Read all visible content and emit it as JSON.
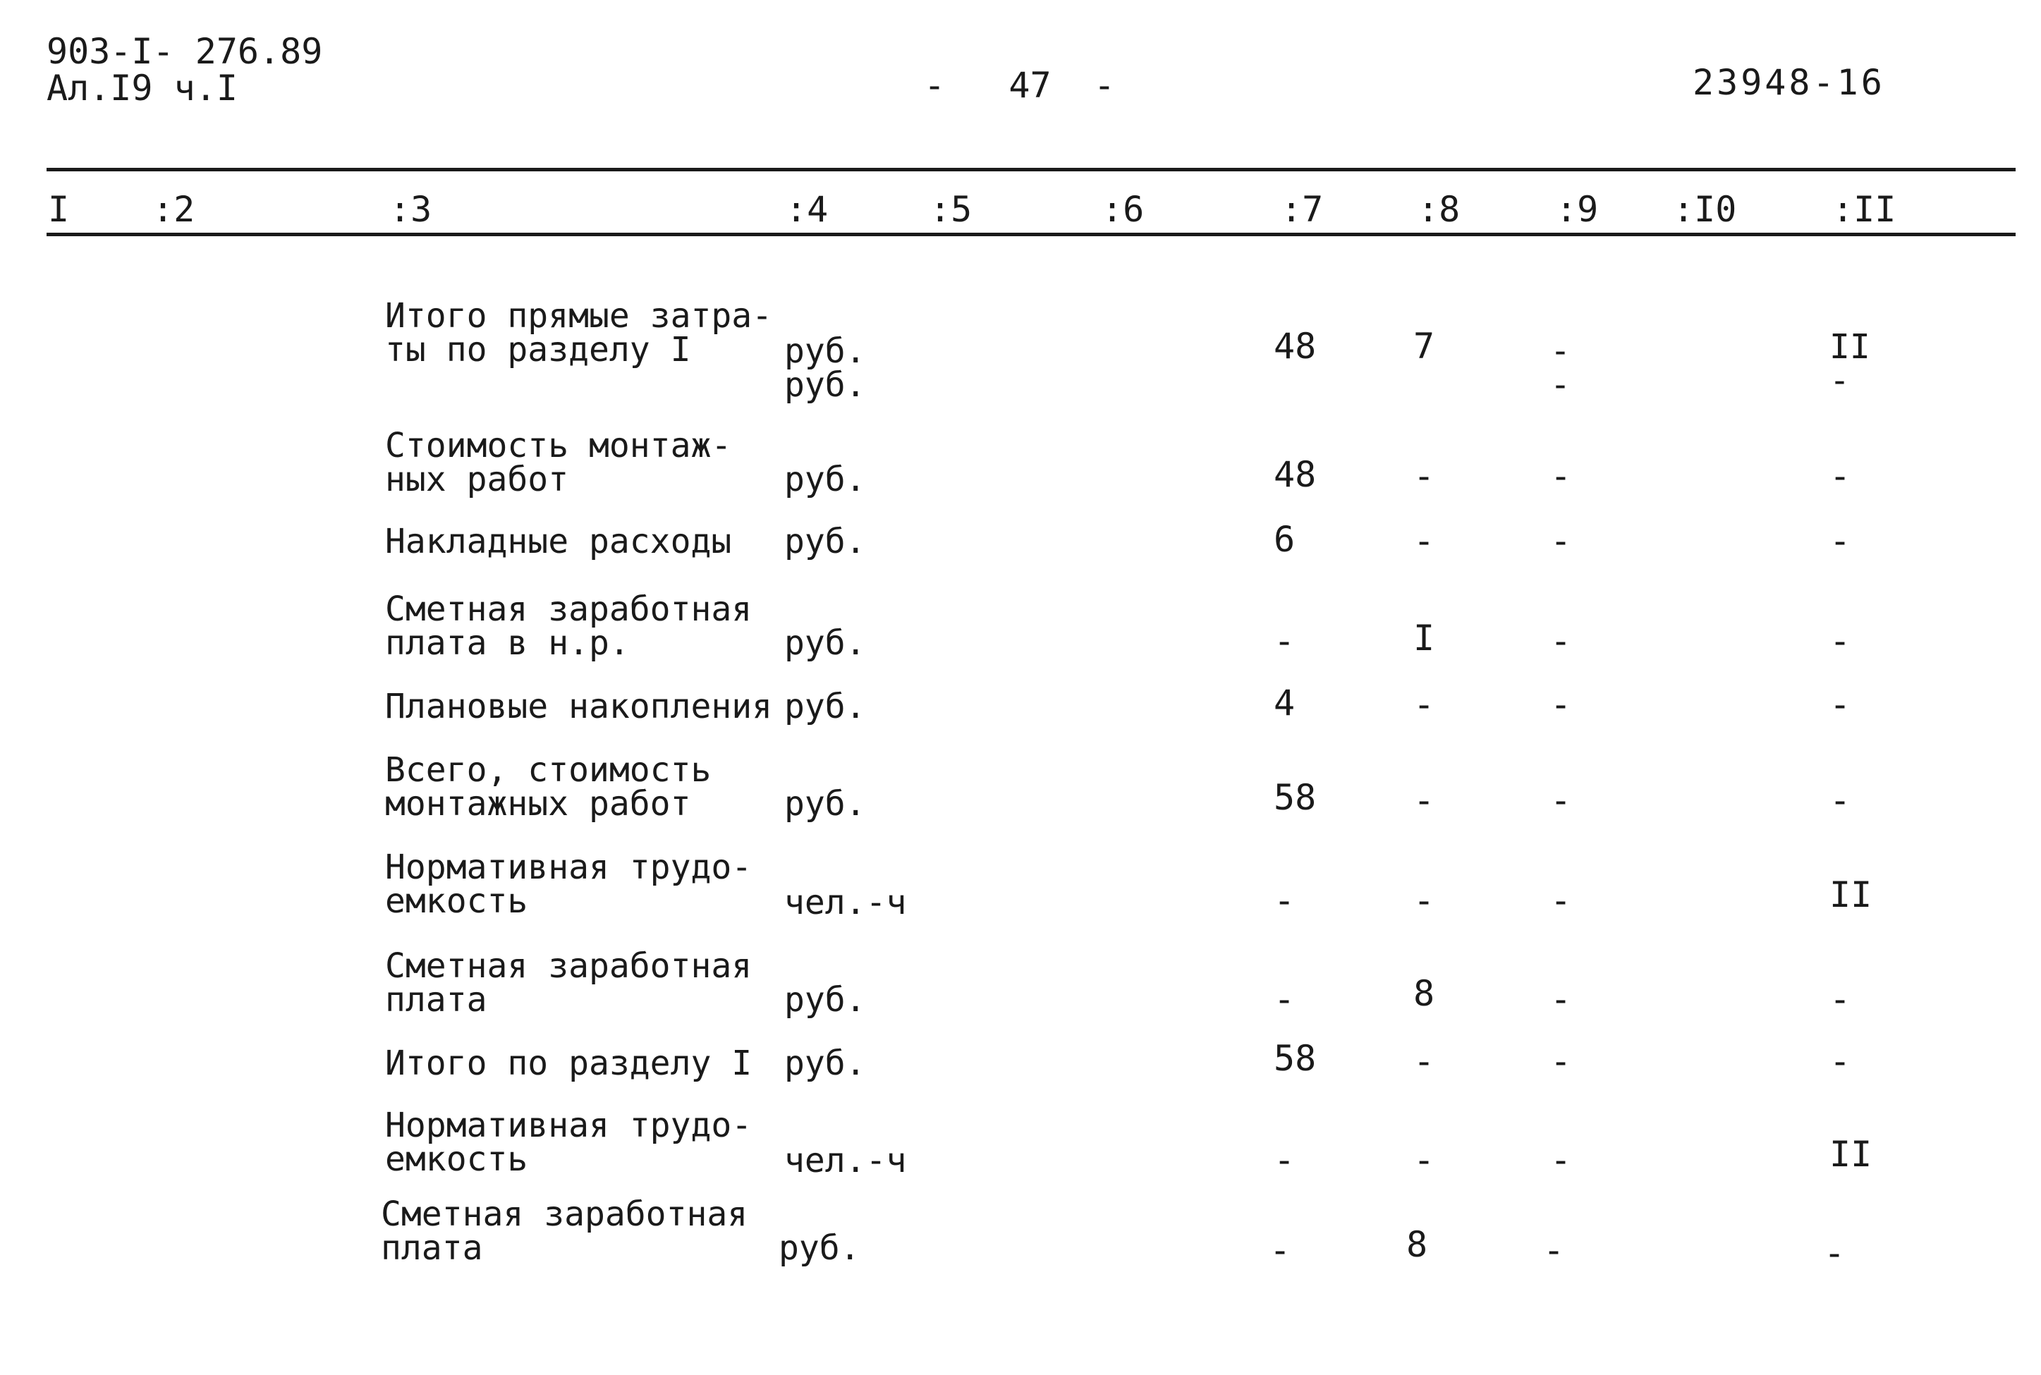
{
  "header": {
    "doc_code_line1": "903-I- 276.89",
    "doc_code_line2": "Ал.I9 ч.I",
    "page_number": "-   47  -",
    "sheet_code": "23948-16"
  },
  "columns": [
    "I",
    ":2",
    ":3",
    ":4",
    ":5",
    ":6",
    ":7",
    ":8",
    ":9",
    ":I0",
    ":II"
  ],
  "rows": [
    {
      "name": "Итого прямые затра-\nты по разделу I",
      "unit": "руб.\nруб.",
      "c7": "48",
      "c8": "7",
      "c9": "-\n-",
      "c11": "II\n-"
    },
    {
      "name": "Стоимость монтаж-\nных работ",
      "unit": "руб.",
      "c7": "48",
      "c8": "-",
      "c9": "-",
      "c11": "-"
    },
    {
      "name": "Накладные расходы",
      "unit": "руб.",
      "c7": "6",
      "c8": "-",
      "c9": "-",
      "c11": "-"
    },
    {
      "name": "Сметная заработная\nплата в н.р.",
      "unit": "руб.",
      "c7": "-",
      "c8": "I",
      "c9": "-",
      "c11": "-"
    },
    {
      "name": "Плановые накопления",
      "unit": "руб.",
      "c7": "4",
      "c8": "-",
      "c9": "-",
      "c11": "-"
    },
    {
      "name": "Всего, стоимость\nмонтажных работ",
      "unit": "руб.",
      "c7": "58",
      "c8": "-",
      "c9": "-",
      "c11": "-"
    },
    {
      "name": "Нормативная трудо-\nемкость",
      "unit": "чел.-ч",
      "c7": "-",
      "c8": "-",
      "c9": "-",
      "c11": "II"
    },
    {
      "name": "Сметная заработная\nплата",
      "unit": "руб.",
      "c7": "-",
      "c8": "8",
      "c9": "-",
      "c11": "-"
    },
    {
      "name": "Итого по разделу I",
      "unit": "руб.",
      "c7": "58",
      "c8": "-",
      "c9": "-",
      "c11": "-"
    },
    {
      "name": "Нормативная трудо-\nемкость",
      "unit": "чел.-ч",
      "c7": "-",
      "c8": "-",
      "c9": "-",
      "c11": "II"
    },
    {
      "name": "Сметная заработная\nплата",
      "unit": "руб.",
      "c7": "-",
      "c8": "8",
      "c9": "-",
      "c11": "-"
    }
  ]
}
